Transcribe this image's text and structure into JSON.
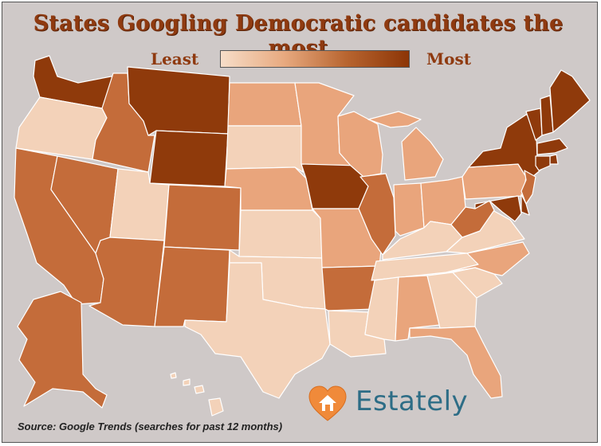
{
  "title": "States Googling Democratic candidates the most",
  "legend": {
    "least": "Least",
    "most": "Most"
  },
  "source": "Source: Google Trends (searches for past 12 months)",
  "brand": {
    "name": "Estately"
  },
  "colors": {
    "level_1": "#f3d2b9",
    "level_2": "#e9a57c",
    "level_3": "#c46c3a",
    "level_4": "#8f3a0b",
    "background": "#cfc9c8",
    "title": "#8f3a10",
    "brand_orange": "#f08a3a",
    "brand_text": "#2d6d86"
  },
  "states": {
    "WA": 4,
    "OR": 1,
    "CA": 3,
    "NV": 3,
    "ID": 3,
    "MT": 4,
    "WY": 4,
    "UT": 1,
    "AZ": 3,
    "CO": 3,
    "NM": 3,
    "ND": 2,
    "SD": 1,
    "NE": 2,
    "KS": 1,
    "OK": 1,
    "TX": 1,
    "MN": 2,
    "IA": 4,
    "MO": 2,
    "AR": 3,
    "LA": 1,
    "WI": 2,
    "IL": 3,
    "MI": 2,
    "IN": 2,
    "OH": 2,
    "KY": 1,
    "TN": 1,
    "MS": 1,
    "AL": 2,
    "GA": 1,
    "FL": 2,
    "SC": 1,
    "NC": 2,
    "VA": 1,
    "WV": 3,
    "PA": 2,
    "NY": 4,
    "VT": 4,
    "NH": 4,
    "ME": 4,
    "MA": 4,
    "RI": 4,
    "CT": 4,
    "NJ": 3,
    "DE": 4,
    "MD": 4,
    "AK": 3,
    "HI": 1
  }
}
